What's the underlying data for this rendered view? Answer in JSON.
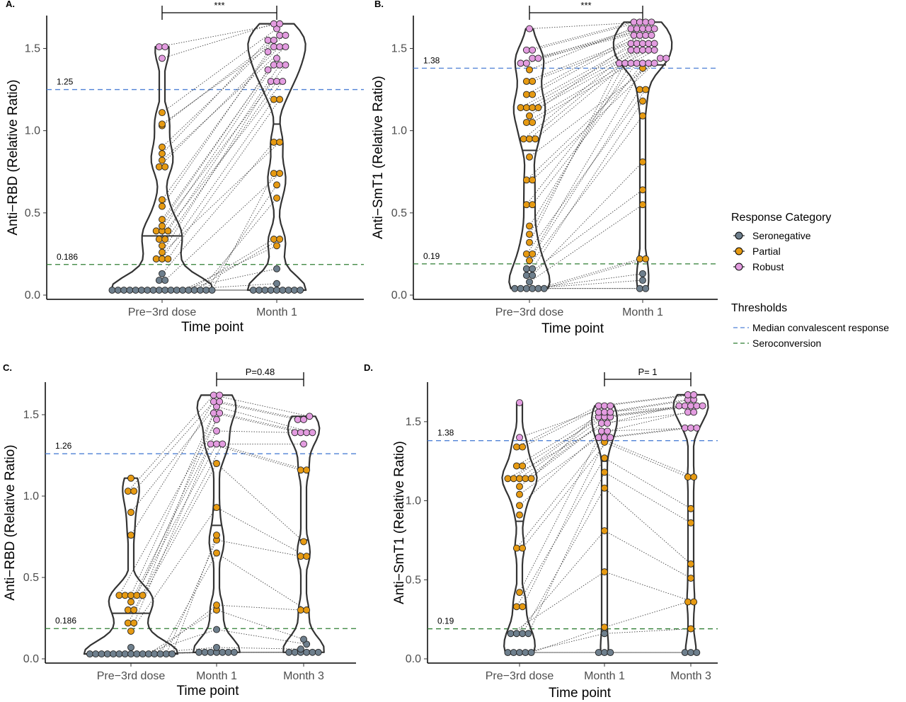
{
  "colors": {
    "seronegative": "#6e7f8d",
    "partial": "#e69a12",
    "robust": "#e39ce0",
    "median_line": "#4f81d6",
    "seroconversion_line": "#2e7d32",
    "violin": "#333333"
  },
  "legend": {
    "response_title": "Response Category",
    "response_items": [
      {
        "label": "Seronegative",
        "category": "seronegative"
      },
      {
        "label": "Partial",
        "category": "partial"
      },
      {
        "label": "Robust",
        "category": "robust"
      }
    ],
    "threshold_title": "Thresholds",
    "threshold_items": [
      {
        "label": "Median convalescent response",
        "kind": "median"
      },
      {
        "label": "Seroconversion",
        "kind": "seroconversion"
      }
    ]
  },
  "chart_data": [
    {
      "panel": "A.",
      "type": "scatter",
      "ylabel": "Anti−RBD (Relative Ratio)",
      "xlabel": "Time point",
      "categories": [
        "Pre−3rd dose",
        "Month 1"
      ],
      "ylim": [
        0,
        1.7
      ],
      "yticks": [
        "0.0",
        "0.5",
        "1.0",
        "1.5"
      ],
      "thresholds": {
        "median": 1.25,
        "median_label": "1.25",
        "seroconversion": 0.186,
        "seroconversion_label": "0.186"
      },
      "medians": [
        0.36,
        1.04
      ],
      "significance": {
        "label": "***",
        "from": 0,
        "to": 1
      },
      "groups": [
        {
          "seronegative": [
            0.03,
            0.03,
            0.03,
            0.03,
            0.03,
            0.03,
            0.03,
            0.03,
            0.03,
            0.03,
            0.03,
            0.03,
            0.03,
            0.03,
            0.03,
            0.03,
            0.03,
            0.03,
            0.09,
            0.09,
            0.13
          ],
          "partial": [
            0.22,
            0.22,
            0.22,
            0.26,
            0.3,
            0.34,
            0.34,
            0.39,
            0.39,
            0.39,
            0.42,
            0.46,
            0.54,
            0.58,
            0.78,
            0.78,
            0.82,
            0.86,
            0.9,
            1.03,
            1.04,
            1.11
          ],
          "robust": [
            1.44,
            1.51,
            1.51
          ]
        },
        {
          "seronegative": [
            0.03,
            0.03,
            0.03,
            0.03,
            0.03,
            0.03,
            0.03,
            0.03,
            0.03,
            0.07,
            0.16
          ],
          "partial": [
            0.3,
            0.34,
            0.34,
            0.59,
            0.67,
            0.74,
            0.74,
            0.93,
            0.93,
            1.19,
            1.19
          ],
          "robust": [
            1.3,
            1.3,
            1.3,
            1.37,
            1.4,
            1.4,
            1.4,
            1.44,
            1.48,
            1.51,
            1.51,
            1.51,
            1.55,
            1.55,
            1.58,
            1.58,
            1.62,
            1.65,
            1.65
          ]
        }
      ]
    },
    {
      "panel": "B.",
      "type": "scatter",
      "ylabel": "Anti−SmT1 (Relative Ratio)",
      "xlabel": "Time point",
      "categories": [
        "Pre−3rd dose",
        "Month 1"
      ],
      "ylim": [
        0,
        1.7
      ],
      "yticks": [
        "0.0",
        "0.5",
        "1.0",
        "1.5"
      ],
      "thresholds": {
        "median": 1.38,
        "median_label": "1.38",
        "seroconversion": 0.19,
        "seroconversion_label": "0.19"
      },
      "medians": [
        0.88,
        1.4
      ],
      "significance": {
        "label": "***",
        "from": 0,
        "to": 1
      },
      "groups": [
        {
          "seronegative": [
            0.04,
            0.04,
            0.04,
            0.04,
            0.04,
            0.04,
            0.08,
            0.12,
            0.12,
            0.16,
            0.16
          ],
          "partial": [
            0.21,
            0.25,
            0.25,
            0.32,
            0.37,
            0.42,
            0.55,
            0.55,
            0.7,
            0.7,
            0.84,
            0.95,
            0.95,
            0.95,
            1.05,
            1.05,
            1.09,
            1.14,
            1.14,
            1.14,
            1.14,
            1.22,
            1.22,
            1.3,
            1.3,
            1.37
          ],
          "robust": [
            1.41,
            1.41,
            1.44,
            1.44,
            1.49,
            1.49,
            1.62
          ]
        },
        {
          "seronegative": [
            0.04,
            0.04,
            0.09,
            0.13
          ],
          "partial": [
            0.22,
            0.22,
            0.55,
            0.64,
            0.81,
            1.09,
            1.18,
            1.25,
            1.25,
            1.38
          ],
          "robust": [
            1.41,
            1.41,
            1.41,
            1.41,
            1.41,
            1.41,
            1.41,
            1.44,
            1.44,
            1.49,
            1.49,
            1.49,
            1.49,
            1.49,
            1.53,
            1.53,
            1.53,
            1.53,
            1.53,
            1.58,
            1.58,
            1.58,
            1.58,
            1.62,
            1.62,
            1.62,
            1.62,
            1.62,
            1.66,
            1.66,
            1.66,
            1.66
          ]
        }
      ]
    },
    {
      "panel": "C.",
      "type": "scatter",
      "ylabel": "Anti−RBD (Relative Ratio)",
      "xlabel": "Time point",
      "categories": [
        "Pre−3rd dose",
        "Month 1",
        "Month 3"
      ],
      "ylim": [
        0,
        1.7
      ],
      "yticks": [
        "0.0",
        "0.5",
        "1.0",
        "1.5"
      ],
      "thresholds": {
        "median": 1.26,
        "median_label": "1.26",
        "seroconversion": 0.186,
        "seroconversion_label": "0.186"
      },
      "medians": [
        0.28,
        0.82,
        0.73
      ],
      "significance": {
        "label": "P=0.48",
        "from": 1,
        "to": 2
      },
      "groups": [
        {
          "seronegative": [
            0.03,
            0.03,
            0.03,
            0.03,
            0.03,
            0.03,
            0.03,
            0.03,
            0.03,
            0.03,
            0.03,
            0.03,
            0.03,
            0.03,
            0.03,
            0.07
          ],
          "partial": [
            0.17,
            0.22,
            0.22,
            0.3,
            0.3,
            0.35,
            0.39,
            0.39,
            0.39,
            0.39,
            0.39,
            0.76,
            0.9,
            1.03,
            1.03,
            1.11
          ],
          "robust": []
        },
        {
          "seronegative": [
            0.04,
            0.04,
            0.04,
            0.04,
            0.04,
            0.04,
            0.04,
            0.07,
            0.18
          ],
          "partial": [
            0.3,
            0.33,
            0.65,
            0.73,
            0.76,
            0.93,
            1.2
          ],
          "robust": [
            1.32,
            1.32,
            1.32,
            1.4,
            1.47,
            1.51,
            1.51,
            1.55,
            1.58,
            1.58,
            1.62,
            1.62
          ]
        },
        {
          "seronegative": [
            0.04,
            0.04,
            0.04,
            0.04,
            0.04,
            0.04,
            0.06,
            0.09,
            0.12
          ],
          "partial": [
            0.3,
            0.3,
            0.63,
            0.63,
            0.72,
            1.16,
            1.16
          ],
          "robust": [
            1.32,
            1.39,
            1.39,
            1.39,
            1.39,
            1.47,
            1.47,
            1.49
          ]
        }
      ]
    },
    {
      "panel": "D.",
      "type": "scatter",
      "ylabel": "Anti−SmT1 (Relative Ratio)",
      "xlabel": "Time point",
      "categories": [
        "Pre−3rd dose",
        "Month 1",
        "Month 3"
      ],
      "ylim": [
        0,
        1.75
      ],
      "yticks": [
        "0.0",
        "0.5",
        "1.0",
        "1.5"
      ],
      "thresholds": {
        "median": 1.38,
        "median_label": "1.38",
        "seroconversion": 0.19,
        "seroconversion_label": "0.19"
      },
      "medians": [
        0.87,
        1.25,
        1.14
      ],
      "significance": {
        "label": "P= 1",
        "from": 1,
        "to": 2
      },
      "groups": [
        {
          "seronegative": [
            0.04,
            0.04,
            0.04,
            0.04,
            0.04,
            0.16,
            0.16,
            0.16,
            0.16
          ],
          "partial": [
            0.33,
            0.33,
            0.42,
            0.7,
            0.7,
            0.91,
            0.97,
            1.04,
            1.09,
            1.14,
            1.14,
            1.14,
            1.14,
            1.14,
            1.22,
            1.22,
            1.34,
            1.34
          ],
          "robust": [
            1.4,
            1.62
          ]
        },
        {
          "seronegative": [
            0.04,
            0.04,
            0.04,
            0.16
          ],
          "partial": [
            0.2,
            0.55,
            0.81,
            1.08,
            1.18,
            1.27,
            1.37
          ],
          "robust": [
            1.4,
            1.4,
            1.4,
            1.44,
            1.44,
            1.49,
            1.49,
            1.53,
            1.53,
            1.53,
            1.56,
            1.56,
            1.56,
            1.6,
            1.6,
            1.6
          ]
        },
        {
          "seronegative": [
            0.04,
            0.04,
            0.04
          ],
          "partial": [
            0.19,
            0.36,
            0.36,
            0.51,
            0.6,
            0.86,
            0.95,
            1.15,
            1.15
          ],
          "robust": [
            1.46,
            1.46,
            1.46,
            1.56,
            1.56,
            1.6,
            1.6,
            1.6,
            1.6,
            1.6,
            1.64,
            1.64,
            1.67,
            1.67
          ]
        }
      ]
    }
  ]
}
